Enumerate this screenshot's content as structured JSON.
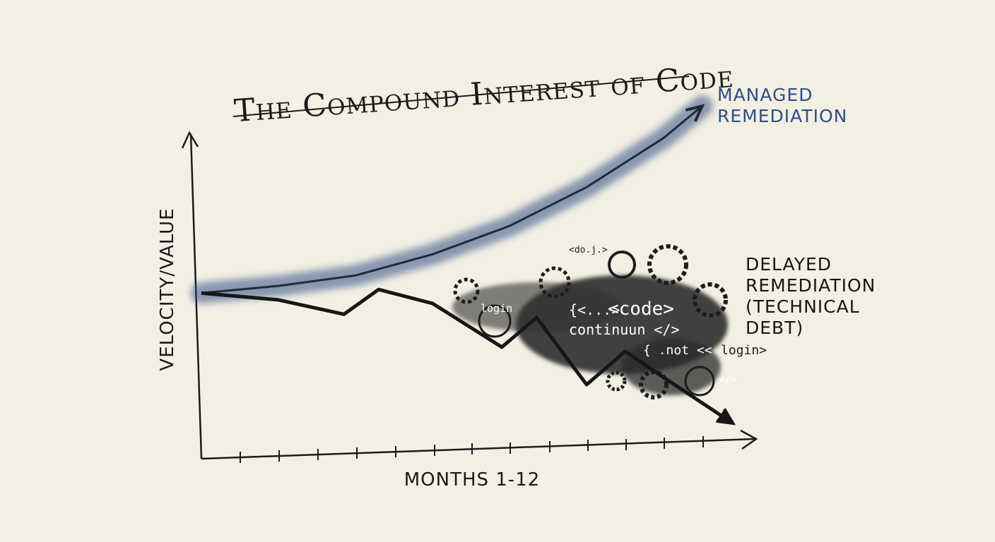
{
  "chart_data": {
    "type": "line",
    "title": "The Compound Interest of Code",
    "x_label": "MONTHS 1-12",
    "y_label": "VELOCITY/VALUE",
    "xlim": [
      0,
      14.4
    ],
    "ylim": [
      0,
      110
    ],
    "series": [
      {
        "name": "MANAGED REMEDIATION",
        "color": "#2d4f86",
        "x": [
          0,
          2,
          4,
          6,
          8,
          10,
          12,
          13
        ],
        "values": [
          50.4,
          52.6,
          55.8,
          62.3,
          71,
          82.9,
          98,
          107.8
        ]
      },
      {
        "name": "DELAYED REMEDIATION (TECHNICAL DEBT)",
        "color": "#161616",
        "x": [
          0,
          2,
          3.7,
          4.6,
          6,
          7.8,
          8.7,
          10,
          11,
          12,
          13.8
        ],
        "values": [
          50.4,
          48.3,
          43.9,
          51.5,
          47.2,
          33.8,
          42.9,
          22.3,
          32.5,
          24.5,
          10.4
        ]
      }
    ],
    "annotations": [
      "<do.j.>",
      "login",
      "{<...>",
      "<code>",
      "continuun </>",
      "{ .not <<",
      "login>",
      "</>"
    ]
  }
}
